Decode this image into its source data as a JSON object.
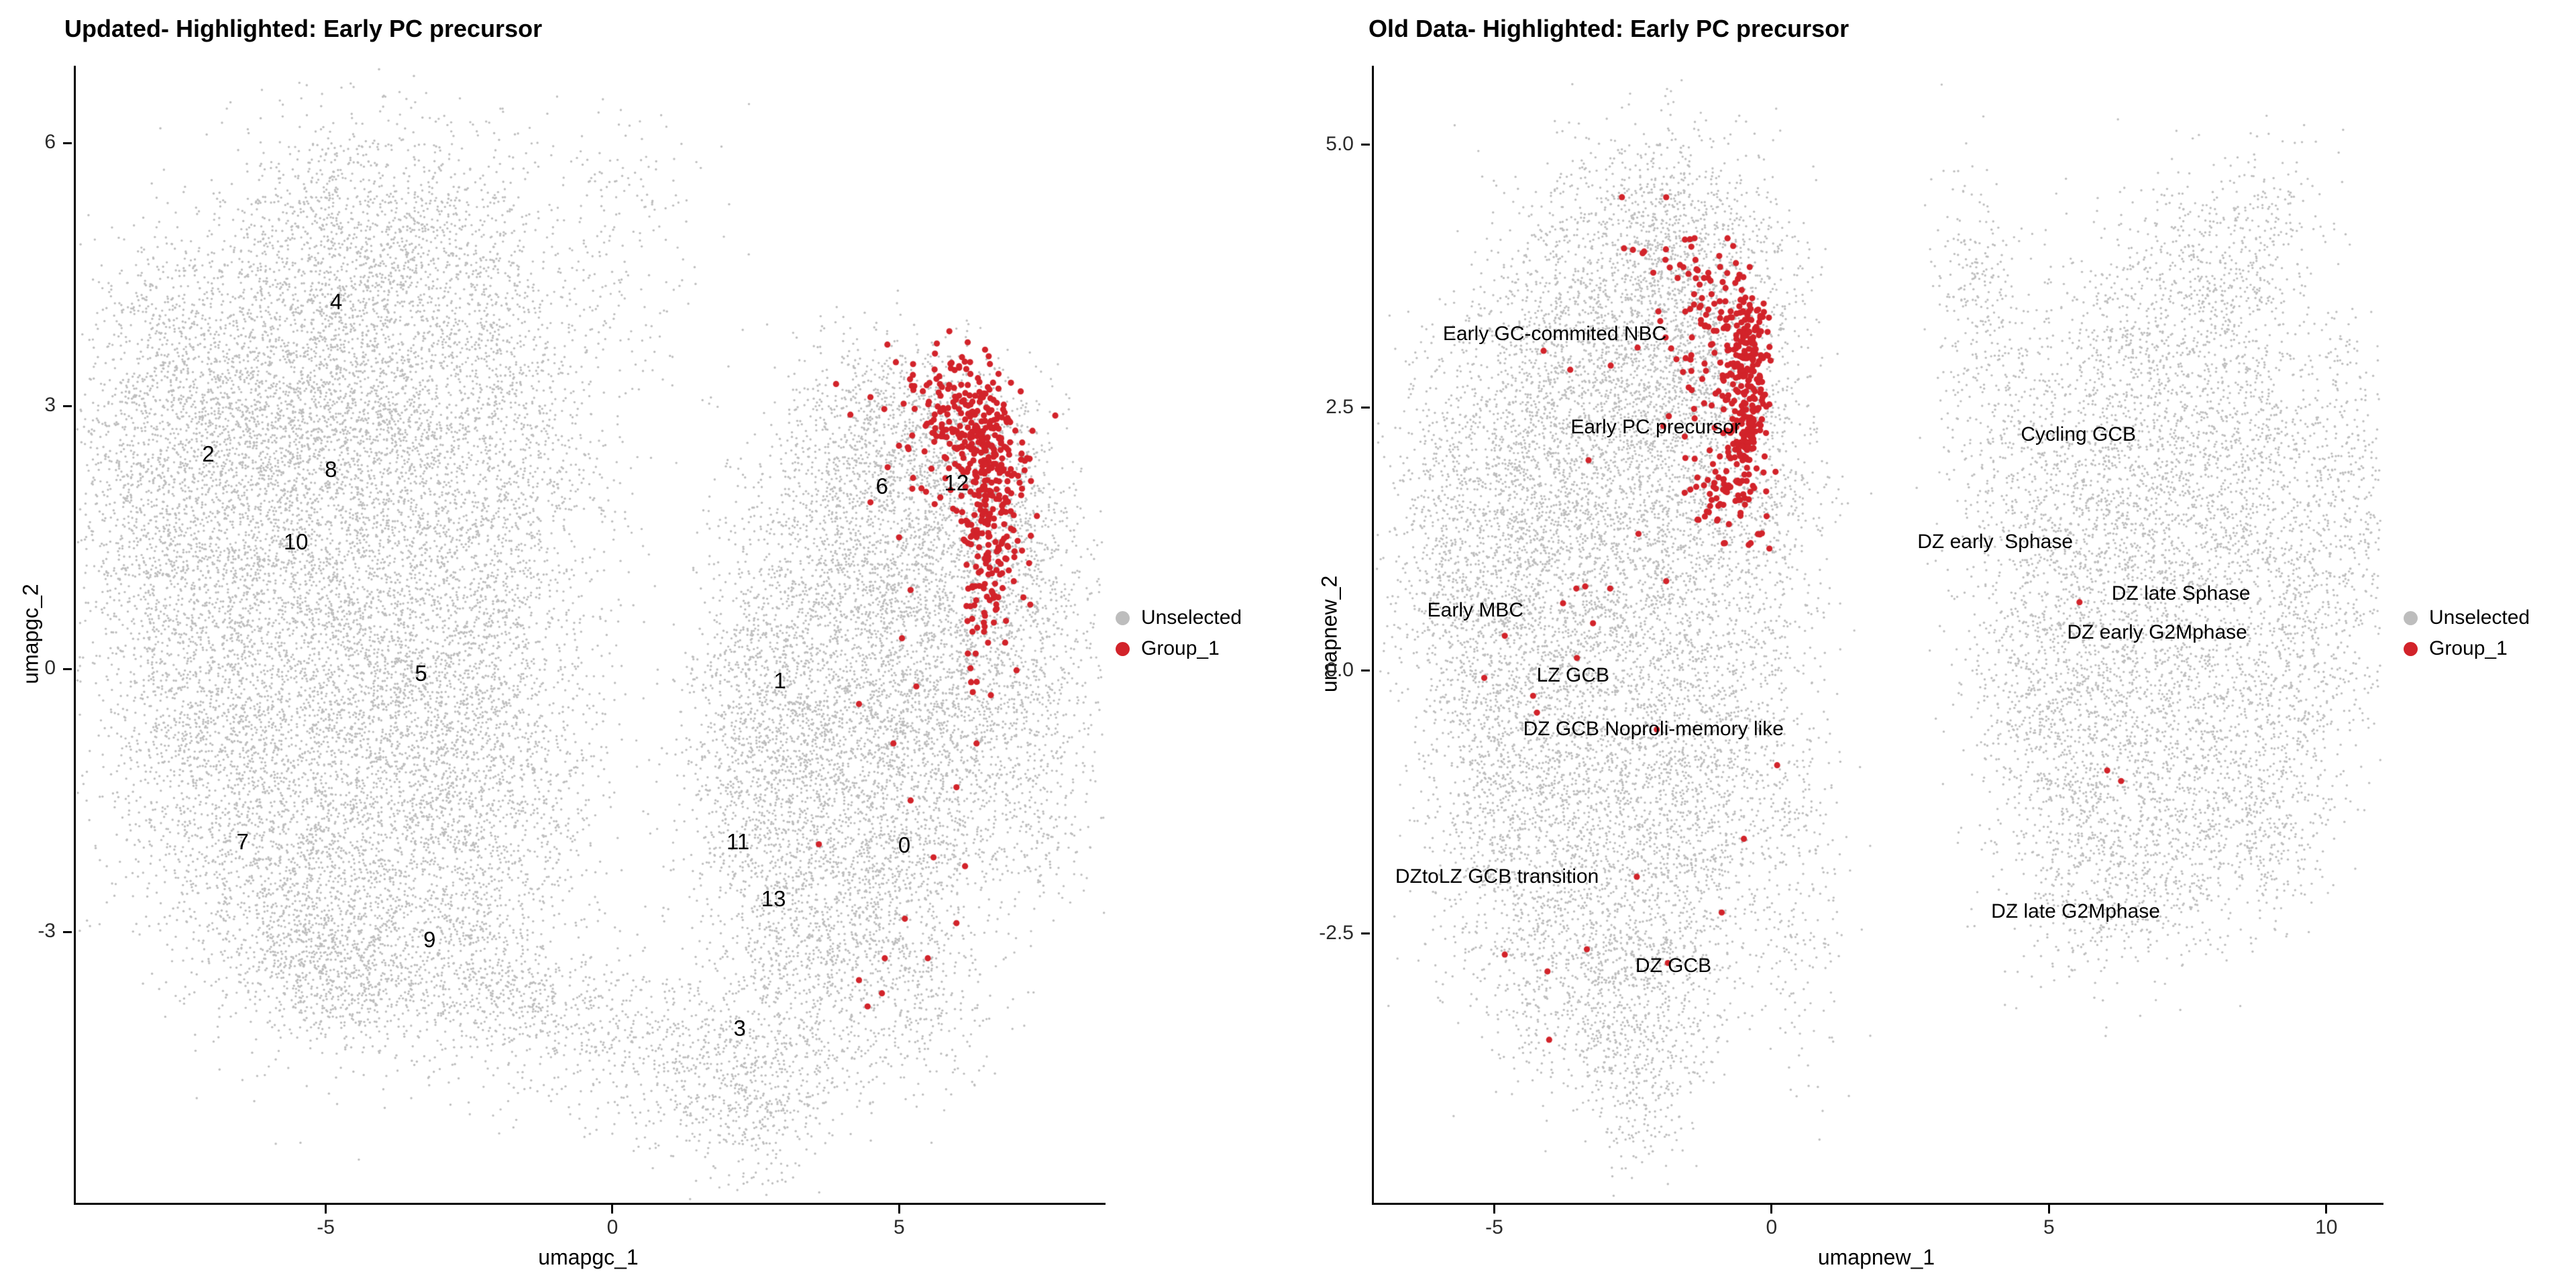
{
  "style": {
    "background": "#ffffff",
    "unselected_color": "#bdbdbd",
    "group1_color": "#d2232a",
    "axis_color": "#000000",
    "r_unselected": 1.7,
    "r_group1": 4.6
  },
  "chart_data": [
    {
      "type": "scatter",
      "title": "Updated- Highlighted: Early PC precursor",
      "xlabel": "umapgc_1",
      "ylabel": "umapgc_2",
      "xlim": [
        -9.36,
        8.6
      ],
      "ylim": [
        -6.09,
        6.88
      ],
      "grid": false,
      "legend_position": "right",
      "legend": [
        "Unselected",
        "Group_1"
      ],
      "xticks": [
        {
          "v": -5,
          "label": "-5"
        },
        {
          "v": 0,
          "label": "0"
        },
        {
          "v": 5,
          "label": "5"
        }
      ],
      "yticks": [
        {
          "v": 6,
          "label": "6"
        },
        {
          "v": 3,
          "label": "3"
        },
        {
          "v": 0,
          "label": "0"
        },
        {
          "v": -3,
          "label": "-3"
        }
      ],
      "annotations": [
        {
          "text": "4",
          "x": -4.82,
          "y": 4.19
        },
        {
          "text": "2",
          "x": -7.05,
          "y": 2.45
        },
        {
          "text": "8",
          "x": -4.91,
          "y": 2.27
        },
        {
          "text": "10",
          "x": -5.52,
          "y": 1.45
        },
        {
          "text": "5",
          "x": -3.34,
          "y": -0.05
        },
        {
          "text": "7",
          "x": -6.45,
          "y": -1.97
        },
        {
          "text": "9",
          "x": -3.19,
          "y": -3.09
        },
        {
          "text": "1",
          "x": 2.92,
          "y": -0.14
        },
        {
          "text": "11",
          "x": 2.19,
          "y": -1.97
        },
        {
          "text": "13",
          "x": 2.81,
          "y": -2.62
        },
        {
          "text": "0",
          "x": 5.09,
          "y": -2.01
        },
        {
          "text": "3",
          "x": 2.22,
          "y": -4.1
        },
        {
          "text": "6",
          "x": 4.7,
          "y": 2.08
        },
        {
          "text": "12",
          "x": 6.0,
          "y": 2.12
        }
      ],
      "unselected_blobs": [
        [
          -4.6,
          5.0,
          1.1,
          0.75,
          800
        ],
        [
          -6.3,
          3.2,
          1.2,
          1.0,
          1200
        ],
        [
          -4.2,
          3.3,
          1.3,
          1.0,
          1300
        ],
        [
          -7.8,
          3.8,
          0.7,
          0.7,
          250
        ],
        [
          -7.6,
          1.2,
          0.9,
          1.2,
          1000
        ],
        [
          -5.6,
          1.4,
          1.2,
          1.2,
          1400
        ],
        [
          -3.4,
          1.6,
          1.2,
          1.2,
          1200
        ],
        [
          -8.3,
          2.2,
          0.6,
          0.9,
          350
        ],
        [
          -7.0,
          -1.0,
          1.0,
          1.0,
          900
        ],
        [
          -5.0,
          -0.8,
          1.2,
          1.1,
          1200
        ],
        [
          -3.2,
          -0.6,
          1.0,
          1.0,
          1000
        ],
        [
          -5.8,
          -2.6,
          1.0,
          0.8,
          700
        ],
        [
          -3.8,
          -2.8,
          1.1,
          0.8,
          800
        ],
        [
          -5.2,
          -3.3,
          0.7,
          0.4,
          250
        ],
        [
          -4.6,
          -3.6,
          0.6,
          0.4,
          200
        ],
        [
          -2.2,
          -1.8,
          0.8,
          0.9,
          550
        ],
        [
          -2.0,
          0.5,
          0.7,
          1.2,
          550
        ],
        [
          -1.6,
          2.8,
          0.7,
          1.0,
          450
        ],
        [
          -2.6,
          4.6,
          0.8,
          0.7,
          450
        ],
        [
          0.0,
          5.6,
          0.8,
          0.5,
          90
        ],
        [
          0.3,
          4.3,
          0.8,
          0.7,
          100
        ],
        [
          -2.2,
          -3.6,
          0.9,
          0.5,
          350
        ],
        [
          -0.8,
          -4.0,
          0.9,
          0.45,
          280
        ],
        [
          0.8,
          -4.4,
          0.9,
          0.45,
          280
        ],
        [
          2.2,
          -4.7,
          0.8,
          0.5,
          320
        ],
        [
          2.6,
          -5.2,
          0.5,
          0.4,
          120
        ],
        [
          -0.9,
          -1.5,
          0.5,
          0.8,
          130
        ],
        [
          -0.3,
          1.0,
          0.5,
          1.5,
          130
        ],
        [
          3.2,
          -3.5,
          0.9,
          0.9,
          600
        ],
        [
          4.6,
          -2.7,
          1.0,
          0.9,
          700
        ],
        [
          3.0,
          -1.8,
          0.9,
          0.9,
          700
        ],
        [
          4.8,
          -1.2,
          1.0,
          1.0,
          900
        ],
        [
          3.0,
          -0.2,
          0.8,
          0.9,
          700
        ],
        [
          4.6,
          0.3,
          1.0,
          1.0,
          900
        ],
        [
          6.3,
          -0.6,
          0.9,
          1.0,
          700
        ],
        [
          6.7,
          0.9,
          0.7,
          0.9,
          550
        ],
        [
          3.9,
          1.6,
          0.9,
          0.9,
          700
        ],
        [
          5.5,
          1.7,
          0.8,
          0.8,
          600
        ],
        [
          4.6,
          2.8,
          0.8,
          0.5,
          450
        ],
        [
          7.6,
          0.3,
          0.5,
          0.9,
          280
        ],
        [
          5.9,
          2.6,
          0.6,
          0.5,
          350
        ],
        [
          6.9,
          2.0,
          0.5,
          0.6,
          280
        ],
        [
          2.2,
          -0.5,
          0.5,
          1.0,
          260
        ],
        [
          5.4,
          -3.9,
          0.7,
          0.5,
          200
        ],
        [
          7.3,
          -1.8,
          0.5,
          0.5,
          150
        ]
      ],
      "group1_blobs": [
        [
          6.3,
          2.85,
          0.45,
          0.3,
          130
        ],
        [
          6.55,
          2.35,
          0.3,
          0.35,
          110
        ],
        [
          6.6,
          1.8,
          0.28,
          0.35,
          80
        ],
        [
          6.6,
          1.2,
          0.3,
          0.4,
          55
        ],
        [
          6.5,
          0.55,
          0.3,
          0.4,
          35
        ],
        [
          5.6,
          2.7,
          0.5,
          0.45,
          45
        ],
        [
          5.95,
          3.25,
          0.45,
          0.2,
          25
        ]
      ],
      "group1_points": [
        [
          3.9,
          3.25
        ],
        [
          4.5,
          3.1
        ],
        [
          4.15,
          2.9
        ],
        [
          4.8,
          2.3
        ],
        [
          4.5,
          1.9
        ],
        [
          5.0,
          1.5
        ],
        [
          5.2,
          0.9
        ],
        [
          5.05,
          0.35
        ],
        [
          5.3,
          -0.2
        ],
        [
          4.9,
          -0.85
        ],
        [
          5.2,
          -1.5
        ],
        [
          5.6,
          -2.15
        ],
        [
          5.1,
          -2.85
        ],
        [
          4.75,
          -3.3
        ],
        [
          4.45,
          -3.85
        ],
        [
          4.7,
          -3.7
        ],
        [
          4.3,
          -3.55
        ],
        [
          5.5,
          -3.3
        ],
        [
          6.0,
          -2.9
        ],
        [
          6.15,
          -2.25
        ],
        [
          6.0,
          -1.35
        ],
        [
          6.35,
          -0.85
        ],
        [
          6.6,
          -0.3
        ],
        [
          6.85,
          0.3
        ],
        [
          7.0,
          1.0
        ],
        [
          6.95,
          1.6
        ],
        [
          4.3,
          -0.4
        ],
        [
          3.6,
          -2.0
        ]
      ]
    },
    {
      "type": "scatter",
      "title": "Old Data- Highlighted: Early PC precursor",
      "xlabel": "umapnew_1",
      "ylabel": "umapnew_2",
      "xlim": [
        -7.17,
        11.03
      ],
      "ylim": [
        -5.06,
        5.75
      ],
      "grid": false,
      "legend_position": "right",
      "legend": [
        "Unselected",
        "Group_1"
      ],
      "xticks": [
        {
          "v": -5,
          "label": "-5"
        },
        {
          "v": 0,
          "label": "0"
        },
        {
          "v": 5,
          "label": "5"
        },
        {
          "v": 10,
          "label": "10"
        }
      ],
      "yticks": [
        {
          "v": 5,
          "label": "5.0"
        },
        {
          "v": 2.5,
          "label": "2.5"
        },
        {
          "v": 0,
          "label": "0.0"
        },
        {
          "v": -2.5,
          "label": "-2.5"
        }
      ],
      "annotations": [
        {
          "text": "Early GC-commited NBC",
          "x": -3.91,
          "y": 3.2
        },
        {
          "text": "Early PC precursor",
          "x": -2.09,
          "y": 2.31
        },
        {
          "text": "Cycling GCB",
          "x": 5.53,
          "y": 2.24
        },
        {
          "text": "DZ early  Sphase",
          "x": 4.03,
          "y": 1.22
        },
        {
          "text": "DZ late Sphase",
          "x": 7.38,
          "y": 0.73
        },
        {
          "text": "DZ early G2Mphase",
          "x": 6.95,
          "y": 0.36
        },
        {
          "text": "Early MBC",
          "x": -5.34,
          "y": 0.57
        },
        {
          "text": "LZ GCB",
          "x": -3.58,
          "y": -0.05
        },
        {
          "text": "DZ GCB Noproli-memory like",
          "x": -2.13,
          "y": -0.56
        },
        {
          "text": "DZtoLZ GCB transition",
          "x": -4.95,
          "y": -1.96
        },
        {
          "text": "DZ late G2Mphase",
          "x": 5.48,
          "y": -2.29
        },
        {
          "text": "DZ GCB",
          "x": -1.77,
          "y": -2.81
        }
      ],
      "unselected_blobs": [
        [
          -1.9,
          4.35,
          0.8,
          0.45,
          450
        ],
        [
          -3.2,
          3.4,
          1.0,
          0.7,
          800
        ],
        [
          -1.6,
          3.2,
          0.8,
          0.7,
          650
        ],
        [
          -4.4,
          2.0,
          0.9,
          0.9,
          1000
        ],
        [
          -2.6,
          2.0,
          1.0,
          1.0,
          1100
        ],
        [
          -0.9,
          2.2,
          0.7,
          0.9,
          650
        ],
        [
          -5.2,
          0.3,
          0.8,
          1.0,
          900
        ],
        [
          -3.4,
          0.3,
          1.0,
          1.0,
          1100
        ],
        [
          -1.5,
          0.3,
          0.8,
          1.0,
          800
        ],
        [
          -5.9,
          1.5,
          0.5,
          0.8,
          300
        ],
        [
          -4.6,
          -1.5,
          0.8,
          0.8,
          700
        ],
        [
          -2.8,
          -1.5,
          1.0,
          0.9,
          900
        ],
        [
          -1.2,
          -1.5,
          0.7,
          0.8,
          550
        ],
        [
          -3.6,
          -2.9,
          0.8,
          0.6,
          550
        ],
        [
          -2.2,
          -3.2,
          0.7,
          0.6,
          450
        ],
        [
          -2.4,
          -4.1,
          0.4,
          0.4,
          130
        ],
        [
          0.2,
          -0.5,
          0.5,
          1.0,
          220
        ],
        [
          0.5,
          -2.2,
          0.4,
          0.8,
          180
        ],
        [
          0.2,
          1.5,
          0.5,
          0.8,
          220
        ],
        [
          -0.3,
          3.6,
          0.6,
          0.6,
          220
        ],
        [
          7.8,
          3.8,
          0.8,
          0.5,
          350
        ],
        [
          9.0,
          4.3,
          0.5,
          0.4,
          130
        ],
        [
          6.3,
          2.6,
          0.9,
          0.8,
          600
        ],
        [
          8.2,
          2.4,
          0.9,
          0.8,
          600
        ],
        [
          5.3,
          1.3,
          0.9,
          0.9,
          700
        ],
        [
          7.2,
          1.0,
          1.0,
          1.0,
          900
        ],
        [
          9.3,
          1.2,
          0.7,
          0.9,
          500
        ],
        [
          6.2,
          -0.5,
          0.9,
          0.8,
          700
        ],
        [
          8.2,
          -0.7,
          0.9,
          0.7,
          600
        ],
        [
          4.8,
          -0.3,
          0.7,
          0.7,
          450
        ],
        [
          5.6,
          -1.8,
          0.8,
          0.5,
          350
        ],
        [
          7.0,
          -1.9,
          0.8,
          0.5,
          350
        ],
        [
          9.7,
          -0.2,
          0.5,
          0.6,
          220
        ],
        [
          4.0,
          2.6,
          0.5,
          0.8,
          260
        ],
        [
          3.6,
          3.8,
          0.4,
          0.5,
          130
        ],
        [
          10.2,
          2.2,
          0.4,
          0.7,
          180
        ],
        [
          10.6,
          1.0,
          0.35,
          0.8,
          150
        ],
        [
          8.8,
          -1.6,
          0.6,
          0.4,
          220
        ]
      ],
      "group1_blobs": [
        [
          -0.45,
          3.15,
          0.22,
          0.3,
          100
        ],
        [
          -0.4,
          2.65,
          0.18,
          0.3,
          90
        ],
        [
          -0.5,
          2.15,
          0.22,
          0.3,
          70
        ],
        [
          -0.6,
          1.65,
          0.3,
          0.3,
          45
        ],
        [
          -1.0,
          2.8,
          0.4,
          0.5,
          60
        ],
        [
          -1.3,
          3.4,
          0.45,
          0.3,
          35
        ],
        [
          -1.1,
          1.9,
          0.35,
          0.35,
          25
        ],
        [
          -1.7,
          3.9,
          0.5,
          0.25,
          18
        ]
      ],
      "group1_points": [
        [
          -1.9,
          4.5
        ],
        [
          -2.5,
          4.0
        ],
        [
          -2.9,
          2.9
        ],
        [
          -3.63,
          2.86
        ],
        [
          -4.11,
          3.04
        ],
        [
          -3.3,
          2.0
        ],
        [
          -2.4,
          1.3
        ],
        [
          -1.9,
          0.85
        ],
        [
          -3.52,
          0.78
        ],
        [
          -3.36,
          0.8
        ],
        [
          -2.91,
          0.78
        ],
        [
          -3.76,
          0.64
        ],
        [
          -3.22,
          0.45
        ],
        [
          -4.81,
          0.33
        ],
        [
          -3.51,
          0.12
        ],
        [
          -5.18,
          -0.07
        ],
        [
          -4.3,
          -0.24
        ],
        [
          -4.23,
          -0.4
        ],
        [
          -2.07,
          -0.56
        ],
        [
          -2.43,
          -1.96
        ],
        [
          -4.81,
          -2.7
        ],
        [
          -3.33,
          -2.65
        ],
        [
          -4.04,
          -2.86
        ],
        [
          -4.01,
          -3.51
        ],
        [
          -1.87,
          -2.78
        ],
        [
          -0.9,
          -2.3
        ],
        [
          -0.5,
          -1.6
        ],
        [
          0.1,
          -0.9
        ],
        [
          5.55,
          0.65
        ],
        [
          6.05,
          -0.95
        ],
        [
          6.3,
          -1.05
        ]
      ]
    }
  ]
}
